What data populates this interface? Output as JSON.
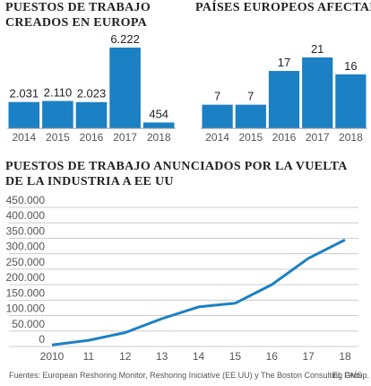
{
  "chart_data": [
    {
      "type": "bar",
      "title": [
        "PUESTOS DE TRABAJO",
        "CREADOS EN EUROPA"
      ],
      "categories": [
        "2014",
        "2015",
        "2016",
        "2017",
        "2018"
      ],
      "values": [
        2031,
        2110,
        2023,
        6222,
        454
      ],
      "value_labels": [
        "2.031",
        "2.110",
        "2.023",
        "6.222",
        "454"
      ],
      "color": "#1b80c4"
    },
    {
      "type": "bar",
      "title": [
        "PAÍSES EUROPEOS AFECTADOS"
      ],
      "categories": [
        "2014",
        "2015",
        "2016",
        "2017",
        "2018"
      ],
      "values": [
        7,
        7,
        17,
        21,
        16
      ],
      "color": "#1b80c4"
    },
    {
      "type": "line",
      "title": [
        "PUESTOS DE TRABAJO ANUNCIADOS POR LA VUELTA",
        "DE LA INDUSTRIA A EE UU"
      ],
      "x": [
        2010,
        2011,
        2012,
        2013,
        2014,
        2015,
        2016,
        2017,
        2018
      ],
      "values": [
        5000,
        20000,
        45000,
        90000,
        128000,
        140000,
        200000,
        285000,
        345000
      ],
      "color": "#1b80c4",
      "xlim": [
        2010,
        2018
      ],
      "xticks": [
        2010,
        {
          "value": 2011,
          "label": "11"
        },
        {
          "value": 2012,
          "label": "12"
        },
        {
          "value": 2013,
          "label": "13"
        },
        {
          "value": 2014,
          "label": "14"
        },
        {
          "value": 2015,
          "label": "15"
        },
        {
          "value": 2016,
          "label": "16"
        },
        {
          "value": 2017,
          "label": "17"
        },
        {
          "value": 2018,
          "label": "18"
        }
      ],
      "ylim": [
        0,
        450000
      ],
      "yticks": [
        0,
        {
          "value": 50000,
          "label": "50.000"
        },
        {
          "value": 100000,
          "label": "100.000"
        },
        {
          "value": 150000,
          "label": "150.000"
        },
        {
          "value": 200000,
          "label": "200.000"
        },
        {
          "value": 250000,
          "label": "250.000"
        },
        {
          "value": 300000,
          "label": "300.000"
        },
        {
          "value": 350000,
          "label": "350.000"
        },
        {
          "value": 400000,
          "label": "400.000"
        },
        {
          "value": 450000,
          "label": "450.000"
        }
      ],
      "grid": true
    }
  ],
  "source": "Fuentes: European Reshoring Monitor, Reshoring Iniciative (EE UU) y The Boston Consulting Group.",
  "credit": "EL PAÍS"
}
